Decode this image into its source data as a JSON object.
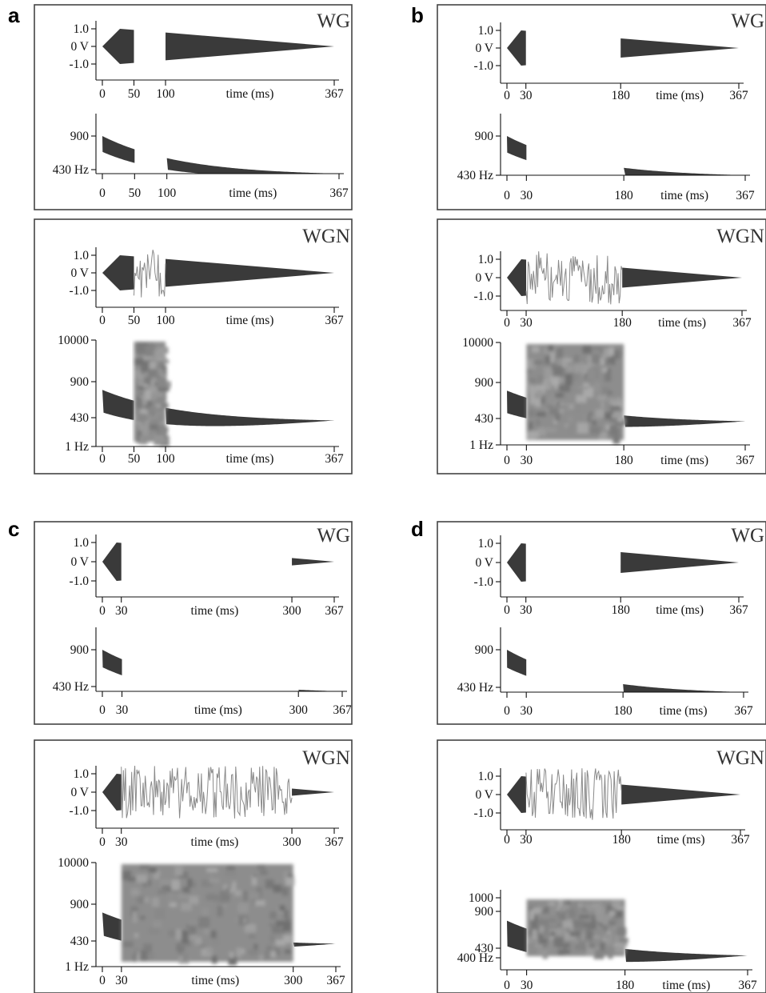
{
  "figure": {
    "panels": [
      {
        "label": "a",
        "wg_title": "WG",
        "wgn_title": "WGN",
        "onset_ms": 50,
        "offset_ms": 100,
        "total_ms": 367,
        "x_ticks": [
          "0",
          "50",
          "100",
          "367"
        ],
        "time_label": "time (ms)",
        "wave_yticks": [
          "1.0",
          "0 V",
          "-1.0"
        ],
        "freq_yticks_wg": [
          "900",
          "430 Hz"
        ],
        "freq_yticks_wgn": [
          "10000",
          "900",
          "430",
          "1 Hz"
        ],
        "wgn_freq_top": "full"
      },
      {
        "label": "b",
        "wg_title": "WG",
        "wgn_title": "WGN",
        "onset_ms": 30,
        "offset_ms": 180,
        "total_ms": 367,
        "x_ticks": [
          "0",
          "30",
          "180",
          "367"
        ],
        "time_label": "time (ms)",
        "wave_yticks": [
          "1.0",
          "0 V",
          "-1.0"
        ],
        "freq_yticks_wg": [
          "900",
          "430 Hz"
        ],
        "freq_yticks_wgn": [
          "10000",
          "900",
          "430",
          "1 Hz"
        ],
        "wgn_freq_top": "full"
      },
      {
        "label": "c",
        "wg_title": "WG",
        "wgn_title": "WGN",
        "onset_ms": 30,
        "offset_ms": 300,
        "total_ms": 367,
        "x_ticks": [
          "0",
          "30",
          "300",
          "367"
        ],
        "time_label": "time (ms)",
        "wave_yticks": [
          "1.0",
          "0 V",
          "-1.0"
        ],
        "freq_yticks_wg": [
          "900",
          "430 Hz"
        ],
        "freq_yticks_wgn": [
          "10000",
          "900",
          "430",
          "1 Hz"
        ],
        "wgn_freq_top": "full"
      },
      {
        "label": "d",
        "wg_title": "WG",
        "wgn_title": "WGN",
        "onset_ms": 30,
        "offset_ms": 180,
        "total_ms": 367,
        "x_ticks": [
          "0",
          "30",
          "180",
          "367"
        ],
        "time_label": "time (ms)",
        "wave_yticks": [
          "1.0",
          "0 V",
          "-1.0"
        ],
        "freq_yticks_wg": [
          "900",
          "430 Hz"
        ],
        "freq_yticks_wgn": [
          "1000",
          "900",
          "430",
          "400 Hz"
        ],
        "wgn_freq_top": "band"
      }
    ],
    "colors": {
      "gliss": "#3a3a3a",
      "noise": "#8a8a8a",
      "frame": "#444444"
    }
  }
}
